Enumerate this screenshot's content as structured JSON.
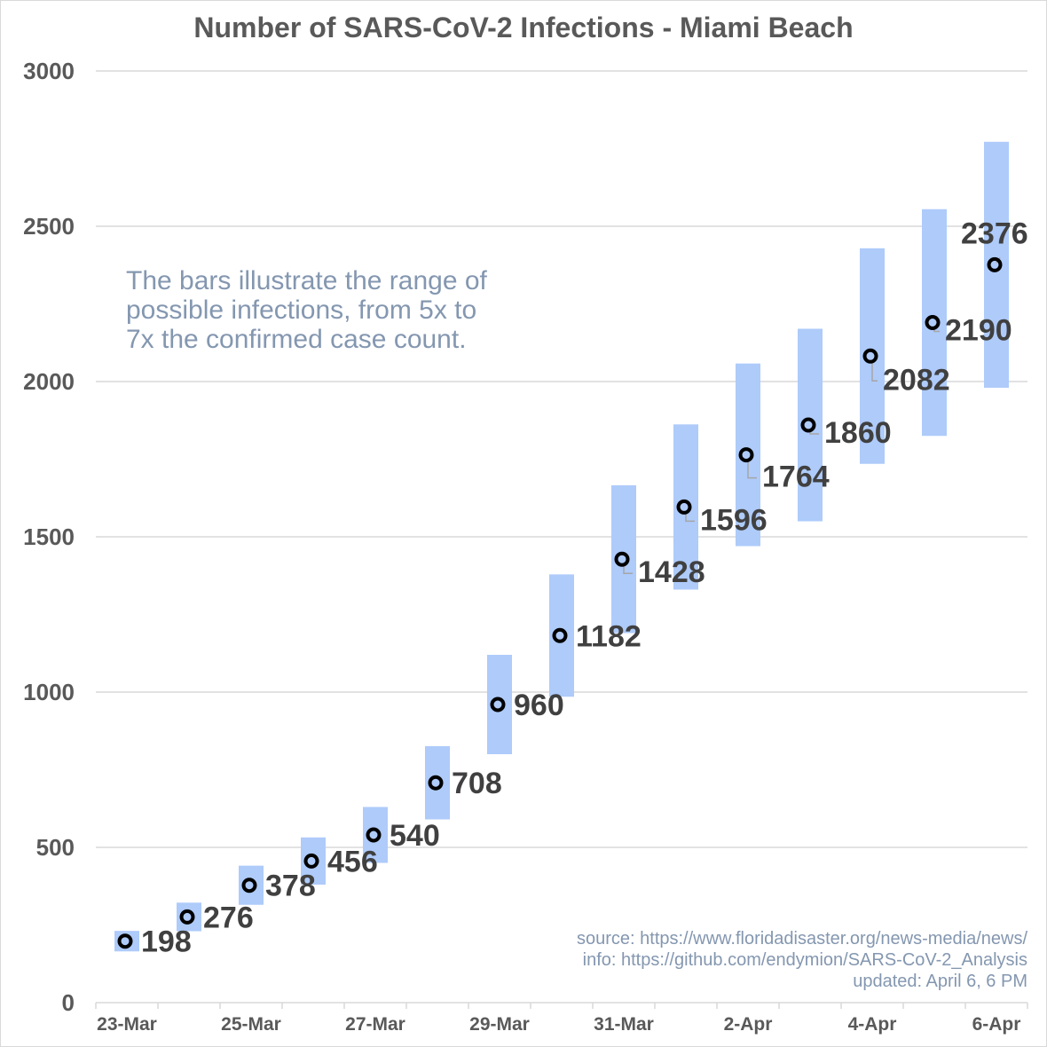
{
  "chart_data": {
    "type": "bar",
    "title": "Number of SARS-CoV-2 Infections - Miami Beach",
    "categories": [
      "23-Mar",
      "24-Mar",
      "25-Mar",
      "26-Mar",
      "27-Mar",
      "28-Mar",
      "29-Mar",
      "30-Mar",
      "31-Mar",
      "1-Apr",
      "2-Apr",
      "3-Apr",
      "4-Apr",
      "5-Apr",
      "6-Apr"
    ],
    "x_tick_labels": [
      "23-Mar",
      "25-Mar",
      "27-Mar",
      "29-Mar",
      "31-Mar",
      "2-Apr",
      "4-Apr",
      "6-Apr"
    ],
    "ylim": [
      0,
      3000
    ],
    "y_ticks": [
      0,
      500,
      1000,
      1500,
      2000,
      2500,
      3000
    ],
    "grid": true,
    "series": [
      {
        "values": [
          198,
          276,
          378,
          456,
          540,
          708,
          960,
          1182,
          1428,
          1596,
          1764,
          1860,
          2082,
          2190,
          2376
        ],
        "range_low": [
          165,
          230,
          315,
          380,
          450,
          590,
          800,
          985,
          1190,
          1330,
          1470,
          1550,
          1735,
          1825,
          1980
        ],
        "range_high": [
          231,
          322,
          441,
          532,
          630,
          826,
          1120,
          1379,
          1666,
          1862,
          2058,
          2170,
          2429,
          2555,
          2772
        ]
      }
    ],
    "annotation": [
      "The bars illustrate the range of",
      "possible infections, from 5x to",
      "7x the confirmed case count."
    ],
    "source_lines": [
      "source: https://www.floridadisaster.org/news-media/news/",
      "info: https://github.com/endymion/SARS-CoV-2_Analysis",
      "updated: April 6, 6 PM"
    ],
    "colors": {
      "bar": "#aecbfa",
      "marker": "#000000",
      "grid": "#d9d9d9",
      "annotation": "#8497b0"
    }
  }
}
